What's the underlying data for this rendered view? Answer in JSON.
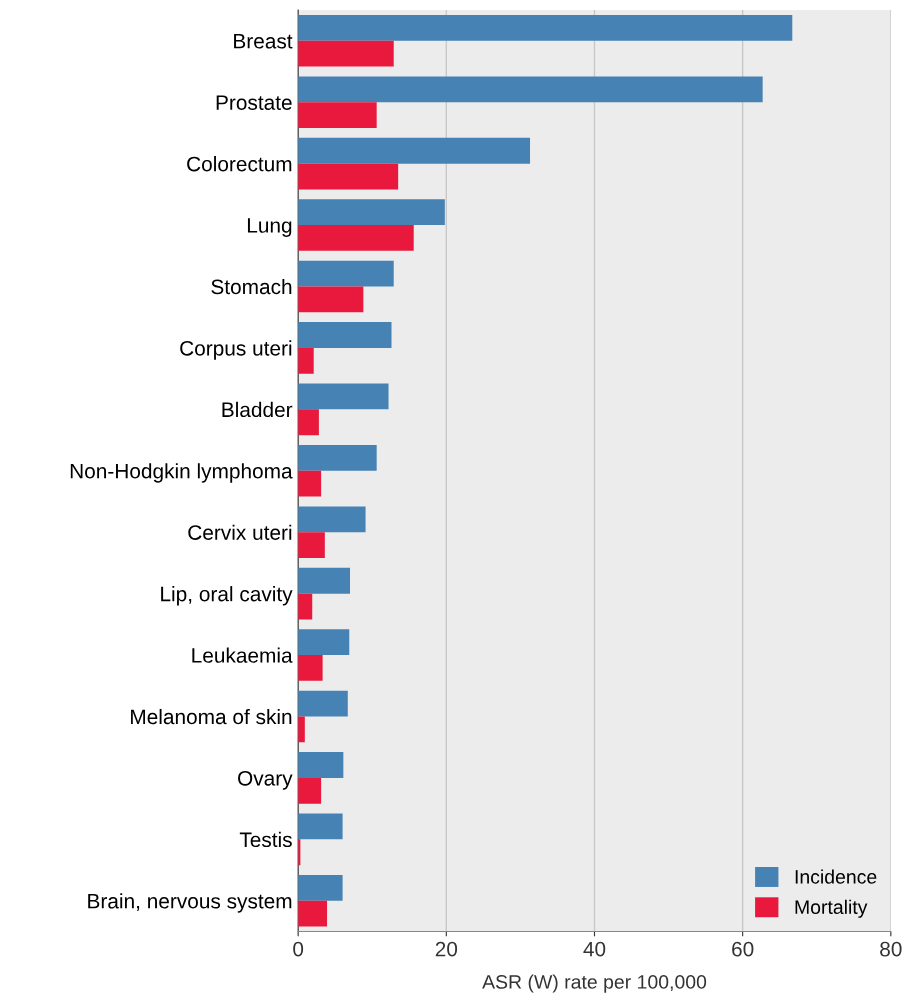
{
  "chart_data": {
    "type": "bar",
    "orientation": "horizontal",
    "xlabel": "ASR (W) rate per 100,000",
    "categories": [
      "Breast",
      "Prostate",
      "Colorectum",
      "Lung",
      "Stomach",
      "Corpus uteri",
      "Bladder",
      "Non-Hodgkin lymphoma",
      "Cervix uteri",
      "Lip, oral cavity",
      "Leukaemia",
      "Melanoma of skin",
      "Ovary",
      "Testis",
      "Brain, nervous system"
    ],
    "series": [
      {
        "name": "Incidence",
        "color": "#4682b4",
        "values": [
          66.7,
          62.7,
          31.3,
          19.8,
          12.9,
          12.6,
          12.2,
          10.6,
          9.1,
          7.0,
          6.9,
          6.7,
          6.1,
          6.0,
          6.0
        ]
      },
      {
        "name": "Mortality",
        "color": "#e8193c",
        "values": [
          12.9,
          10.6,
          13.5,
          15.6,
          8.8,
          2.1,
          2.8,
          3.1,
          3.6,
          1.9,
          3.3,
          0.9,
          3.1,
          0.3,
          3.9
        ]
      }
    ],
    "xlim": [
      0,
      80
    ],
    "xticks": [
      0,
      20,
      40,
      60,
      80
    ],
    "grid": "x",
    "legend": "bottom right"
  }
}
